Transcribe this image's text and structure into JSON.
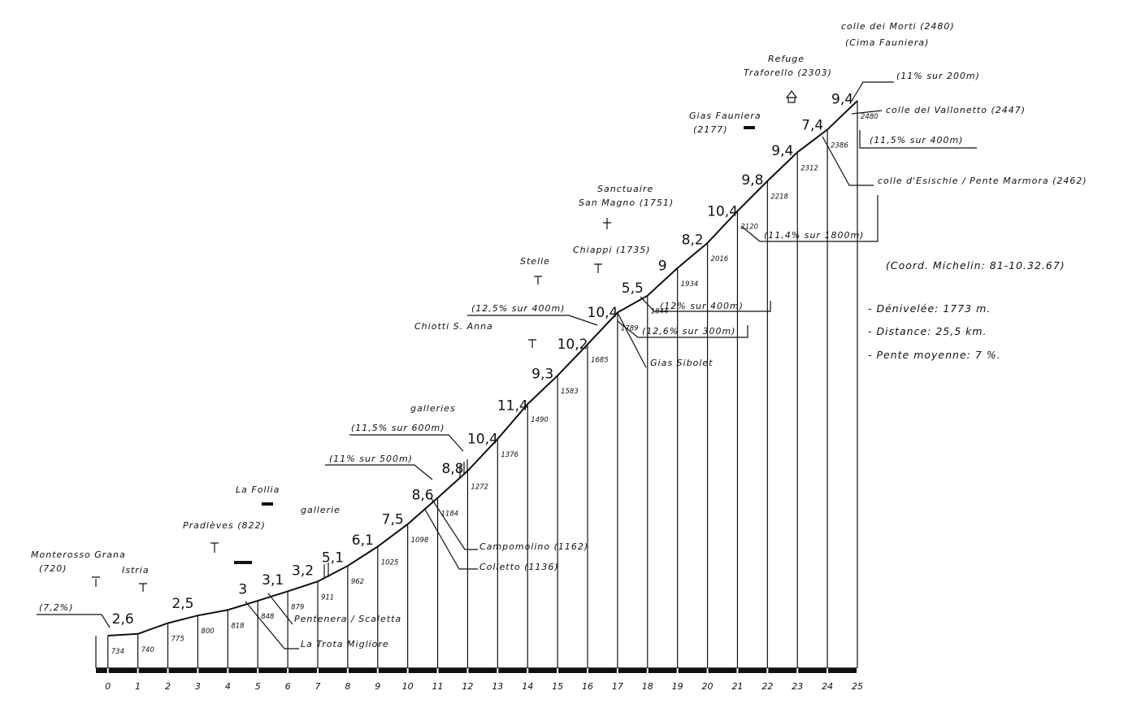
{
  "chart_data": {
    "type": "profile",
    "x": [
      0,
      1,
      2,
      3,
      4,
      5,
      6,
      7,
      8,
      9,
      10,
      11,
      12,
      13,
      14,
      15,
      16,
      17,
      18,
      19,
      20,
      21,
      22,
      23,
      24,
      25
    ],
    "values": [
      734,
      740,
      775,
      800,
      818,
      848,
      879,
      911,
      962,
      1025,
      1098,
      1184,
      1272,
      1376,
      1490,
      1583,
      1685,
      1789,
      1844,
      1934,
      2016,
      2120,
      2218,
      2312,
      2386,
      2480
    ],
    "color": "#111111",
    "gradients": {
      "values": [
        2.6,
        null,
        2.5,
        null,
        3,
        3.1,
        3.2,
        5.1,
        6.1,
        7.5,
        8.6,
        8.8,
        10.4,
        11.4,
        9.3,
        10.2,
        10.4,
        5.5,
        9,
        8.2,
        10.4,
        9.8,
        9.4,
        7.4,
        9.4
      ],
      "value_labels": [
        "2,6",
        null,
        "2,5",
        null,
        "3",
        "3,1",
        "3,2",
        "5,1",
        "6,1",
        "7,5",
        "8,6",
        "8,8",
        "10,4",
        "11,4",
        "9,3",
        "10,2",
        "10,4",
        "5,5",
        "9",
        "8,2",
        "10,4",
        "9,8",
        "9,4",
        "7,4",
        "9,4"
      ]
    },
    "xlim": [
      -0.4,
      25
    ],
    "xticks": [
      0,
      1,
      2,
      3,
      4,
      5,
      6,
      7,
      8,
      9,
      10,
      11,
      12,
      13,
      14,
      15,
      16,
      17,
      18,
      19,
      20,
      21,
      22,
      23,
      24,
      25
    ],
    "ylim": [
      628,
      2809
    ],
    "grid": false,
    "annotations": [
      "colle dei Morti (2480)",
      "(Cima Fauniera)",
      "Refuge",
      "Traforello (2303)",
      "Gias Fauniera",
      "(2177)",
      "(11% sur 200m)",
      "colle del Vallonetto (2447)",
      "(11,5% sur 400m)",
      "colle d'Esischie / Pente Marmora (2462)",
      "(11,4% sur 1800m)",
      "(Coord. Michelin: 81-10.32.67)",
      "- Dénivelée: 1773 m.",
      "- Distance: 25,5 km.",
      "- Pente moyenne: 7 %.",
      "Sanctuaire",
      "San Magno (1751)",
      "Chiappi (1735)",
      "Stelle",
      "(12% sur 400m)",
      "(12,5% sur 400m)",
      "(12,6% sur 300m)",
      "Chiotti S. Anna",
      "Gias Sibolet",
      "galleries",
      "(11,5% sur 600m)",
      "(11% sur 500m)",
      "Campomolino (1162)",
      "Colletto (1136)",
      "La Follia",
      "gallerie",
      "Pradlèves (822)",
      "Monterosso Grana",
      "(720)",
      "Istria",
      "(7,2%)",
      "Pentenera / Scaletta",
      "La Trota Migliore"
    ]
  }
}
